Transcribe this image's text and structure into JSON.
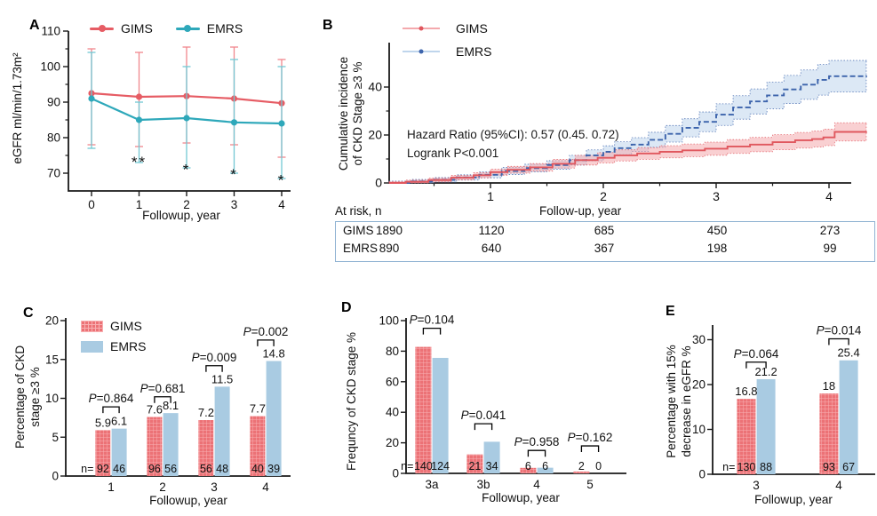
{
  "colors": {
    "gims_red": "#E65C64",
    "gims_bar": "#EC7276",
    "gims_hatch": "#F8AFB1",
    "emrs_teal": "#2EA8BA",
    "emrs_bar": "#A9CBE2",
    "emrs_line_b": "#3D64AC",
    "emrs_band": "#BFD5EC",
    "gims_band": "#F4A9AD",
    "table_border": "#8FB2D2",
    "axis": "#1a1a1a"
  },
  "chart_data": [
    {
      "id": "A",
      "type": "line",
      "panel_label": "A",
      "xlabel": "Followup, year",
      "ylabel": "eGFR ml/min/1.73m²",
      "x": [
        0,
        1,
        2,
        3,
        4
      ],
      "yticks": [
        70,
        80,
        90,
        100,
        110
      ],
      "yticks_minor": [
        75,
        85,
        95,
        105
      ],
      "ylim": [
        65,
        110
      ],
      "series": [
        {
          "name": "GIMS",
          "color": "#E65C64",
          "err_color": "#F0878D",
          "values": [
            92.5,
            91.5,
            91.7,
            91.0,
            89.7
          ],
          "upper": [
            105,
            104,
            105.5,
            105.5,
            102
          ],
          "lower": [
            78,
            77.5,
            78.5,
            78,
            74.5
          ]
        },
        {
          "name": "EMRS",
          "color": "#2EA8BA",
          "err_color": "#74C8D4",
          "values": [
            91,
            85,
            85.5,
            84.3,
            84
          ],
          "upper": [
            104,
            90,
            100,
            102,
            100
          ],
          "lower": [
            77,
            73,
            71.5,
            70,
            68.5
          ]
        }
      ],
      "sig_marks": [
        {
          "x": 1,
          "y": 71.7,
          "text": "**"
        },
        {
          "x": 2,
          "y": 69.6,
          "text": "*"
        },
        {
          "x": 3,
          "y": 68.2,
          "text": "*"
        },
        {
          "x": 4,
          "y": 66.6,
          "text": "*"
        }
      ]
    },
    {
      "id": "B",
      "type": "step",
      "panel_label": "B",
      "xlabel": "Follow-up, year",
      "ylabel_lines": [
        "Cumulative incidence",
        "of CKD Stage ≥3  %"
      ],
      "xticks": [
        1,
        2,
        3,
        4
      ],
      "xticks_minor": [
        0.5,
        1.5,
        2.5,
        3.5
      ],
      "yticks": [
        0,
        20,
        40
      ],
      "yticks_minor": [
        10,
        30
      ],
      "xlim": [
        0.1,
        4.35
      ],
      "ylim": [
        0,
        52
      ],
      "annotation_lines": [
        "Hazard Ratio (95%CI): 0.57 (0.45. 0.72)",
        "Logrank P<0.001"
      ],
      "series": [
        {
          "name": "GIMS",
          "color": "#E0575E",
          "band_color": "#F4A9AD",
          "dash": "",
          "band": [
            0.6,
            0.15
          ],
          "x": [
            0.1,
            0.25,
            0.45,
            0.65,
            0.85,
            1.0,
            1.15,
            1.35,
            1.55,
            1.75,
            1.95,
            2.1,
            2.3,
            2.5,
            2.7,
            2.9,
            3.1,
            3.3,
            3.5,
            3.7,
            3.85,
            3.95,
            4.05,
            4.33
          ],
          "y": [
            0,
            0.5,
            1.2,
            2.2,
            3.2,
            4.5,
            5.5,
            6.5,
            8,
            9.5,
            10.5,
            11.5,
            12.3,
            13,
            13.6,
            14.3,
            15.2,
            16,
            17,
            17.8,
            18.3,
            19,
            21.3,
            21.5
          ]
        },
        {
          "name": "EMRS",
          "color": "#3D64AC",
          "band_color": "#BFD5EC",
          "dash": "6 3",
          "band": [
            0.8,
            0.13
          ],
          "x": [
            0.1,
            0.3,
            0.5,
            0.7,
            0.9,
            1.1,
            1.3,
            1.5,
            1.7,
            1.85,
            2.0,
            2.1,
            2.25,
            2.4,
            2.55,
            2.7,
            2.85,
            3.0,
            3.15,
            3.3,
            3.45,
            3.6,
            3.75,
            3.9,
            4.0,
            4.33
          ],
          "y": [
            0,
            0.6,
            1.3,
            2.3,
            3.4,
            5,
            6.2,
            7.5,
            9.5,
            11.5,
            13,
            14.5,
            16,
            18,
            20.5,
            23,
            25.5,
            28.5,
            31.5,
            34,
            36.5,
            39,
            41,
            43,
            44.5,
            44.8
          ]
        }
      ]
    },
    {
      "id": "C",
      "type": "bar",
      "panel_label": "C",
      "xlabel": "Followup, year",
      "ylabel_lines": [
        "Percentage of CKD",
        "stage ≥3 %"
      ],
      "categories": [
        "1",
        "2",
        "3",
        "4"
      ],
      "yticks": [
        0,
        5,
        10,
        15,
        20
      ],
      "ylim": [
        0,
        20
      ],
      "series": [
        {
          "name": "GIMS",
          "color": "#EC7276",
          "hatch_color": "#F8AFB1",
          "values": [
            5.9,
            7.6,
            7.2,
            7.7
          ]
        },
        {
          "name": "EMRS",
          "color": "#A9CBE2",
          "values": [
            6.1,
            8.1,
            11.5,
            14.8
          ]
        }
      ],
      "value_labels": [
        [
          "5.9",
          "6.1"
        ],
        [
          "7.6",
          "8.1"
        ],
        [
          "7.2",
          "11.5"
        ],
        [
          "7.7",
          "14.8"
        ]
      ],
      "n_prefix": "n=",
      "n_values": [
        [
          "92",
          "46"
        ],
        [
          "96",
          "56"
        ],
        [
          "56",
          "48"
        ],
        [
          "40",
          "39"
        ]
      ],
      "p_values": [
        "P=0.864",
        "P=0.681",
        "P=0.009",
        "P=0.002"
      ],
      "bracket_y": [
        8.9,
        10.2,
        14.2,
        17.5
      ],
      "legend": [
        "GIMS",
        "EMRS"
      ]
    },
    {
      "id": "D",
      "type": "bar",
      "panel_label": "D",
      "xlabel": "Followup, year",
      "ylabel_lines": [
        "Frequncy of CKD stage %"
      ],
      "categories": [
        "3a",
        "3b",
        "4",
        "5"
      ],
      "yticks": [
        0,
        20,
        40,
        60,
        80,
        100
      ],
      "ylim": [
        0,
        100
      ],
      "series": [
        {
          "name": "GIMS",
          "color": "#EC7276",
          "hatch_color": "#F8AFB1",
          "values": [
            82.8,
            12.4,
            3.6,
            1.2
          ]
        },
        {
          "name": "EMRS",
          "color": "#A9CBE2",
          "values": [
            75.6,
            20.7,
            3.7,
            0
          ]
        }
      ],
      "n_prefix": "n=",
      "n_values": [
        [
          "140",
          "124"
        ],
        [
          "21",
          "34"
        ],
        [
          "6",
          "6"
        ],
        [
          "2",
          "0"
        ]
      ],
      "p_values": [
        "P=0.104",
        "P=0.041",
        "P=0.958",
        "P=0.162"
      ],
      "bracket_y": [
        95,
        32.5,
        15,
        18
      ]
    },
    {
      "id": "E",
      "type": "bar",
      "panel_label": "E",
      "xlabel": "Followup, year",
      "ylabel_lines": [
        "Percentage with 15%",
        "decrease in eGFR %"
      ],
      "categories": [
        "3",
        "4"
      ],
      "yticks": [
        0,
        10,
        20,
        30
      ],
      "ylim": [
        0,
        33
      ],
      "series": [
        {
          "name": "GIMS",
          "color": "#EC7276",
          "hatch_color": "#F8AFB1",
          "values": [
            16.8,
            18
          ]
        },
        {
          "name": "EMRS",
          "color": "#A9CBE2",
          "values": [
            21.2,
            25.4
          ]
        }
      ],
      "value_labels": [
        [
          "16.8",
          "21.2"
        ],
        [
          "18",
          "25.4"
        ]
      ],
      "n_prefix": "n=",
      "n_values": [
        [
          "130",
          "88"
        ],
        [
          "93",
          "67"
        ]
      ],
      "p_values": [
        "P=0.064",
        "P=0.014"
      ],
      "bracket_y": [
        25,
        30.2
      ]
    }
  ],
  "risk_table": {
    "title": "At risk, n",
    "xlabel": "Follow-up, year",
    "rows": [
      {
        "name": "GIMS",
        "values": [
          "1890",
          "1120",
          "685",
          "450",
          "273"
        ]
      },
      {
        "name": "EMRS",
        "values": [
          "890",
          "640",
          "367",
          "198",
          "99"
        ]
      }
    ]
  }
}
